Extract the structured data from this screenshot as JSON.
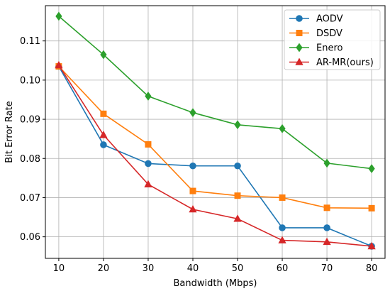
{
  "chart_data": {
    "type": "line",
    "title": "",
    "xlabel": "Bandwidth (Mbps)",
    "ylabel": "Bit Error Rate",
    "x": [
      10,
      20,
      30,
      40,
      50,
      60,
      70,
      80
    ],
    "xlim": [
      7,
      83
    ],
    "ylim": [
      0.0545,
      0.119
    ],
    "xticks": [
      10,
      20,
      30,
      40,
      50,
      60,
      70,
      80
    ],
    "yticks": [
      0.06,
      0.07,
      0.08,
      0.09,
      0.1,
      0.11
    ],
    "xtick_labels": [
      "10",
      "20",
      "30",
      "40",
      "50",
      "60",
      "70",
      "80"
    ],
    "ytick_labels": [
      "0.06",
      "0.07",
      "0.08",
      "0.09",
      "0.10",
      "0.11"
    ],
    "grid": true,
    "legend_position": "top-right",
    "series": [
      {
        "name": "AODV",
        "color": "#1f77b4",
        "marker": "circle",
        "values": [
          0.1035,
          0.0835,
          0.0787,
          0.0781,
          0.0781,
          0.0623,
          0.0623,
          0.0576
        ]
      },
      {
        "name": "DSDV",
        "color": "#ff7f0e",
        "marker": "square",
        "values": [
          0.1035,
          0.0914,
          0.0836,
          0.0717,
          0.0705,
          0.07,
          0.0674,
          0.0673
        ]
      },
      {
        "name": "Enero",
        "color": "#2ca02c",
        "marker": "diamond",
        "values": [
          0.1163,
          0.1065,
          0.0959,
          0.0917,
          0.0886,
          0.0876,
          0.0788,
          0.0774
        ]
      },
      {
        "name": "AR-MR(ours)",
        "color": "#d62728",
        "marker": "triangle",
        "values": [
          0.1038,
          0.086,
          0.0734,
          0.067,
          0.0646,
          0.0591,
          0.0587,
          0.0576
        ]
      }
    ]
  }
}
